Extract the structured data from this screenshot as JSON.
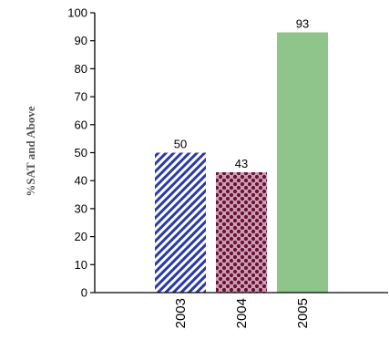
{
  "chart_data": {
    "type": "bar",
    "title": "",
    "xlabel": "",
    "ylabel": "%SAT and Above",
    "ylim": [
      0,
      100
    ],
    "yticks": [
      "0",
      "10",
      "20",
      "30",
      "40",
      "50",
      "60",
      "70",
      "80",
      "90",
      "100"
    ],
    "categories": [
      "2003",
      "2004",
      "2005"
    ],
    "values": [
      50,
      43,
      93
    ],
    "value_labels": [
      "50",
      "43",
      "93"
    ],
    "grid": false,
    "legend": "none",
    "bar_styles": [
      {
        "pattern": "diagonal-stripes",
        "color": "#2a3aa8",
        "background": "#ffffff"
      },
      {
        "pattern": "dots",
        "color": "#6e1030",
        "background": "#c9a0b8"
      },
      {
        "pattern": "solid",
        "color": "#8fc48a"
      }
    ]
  }
}
